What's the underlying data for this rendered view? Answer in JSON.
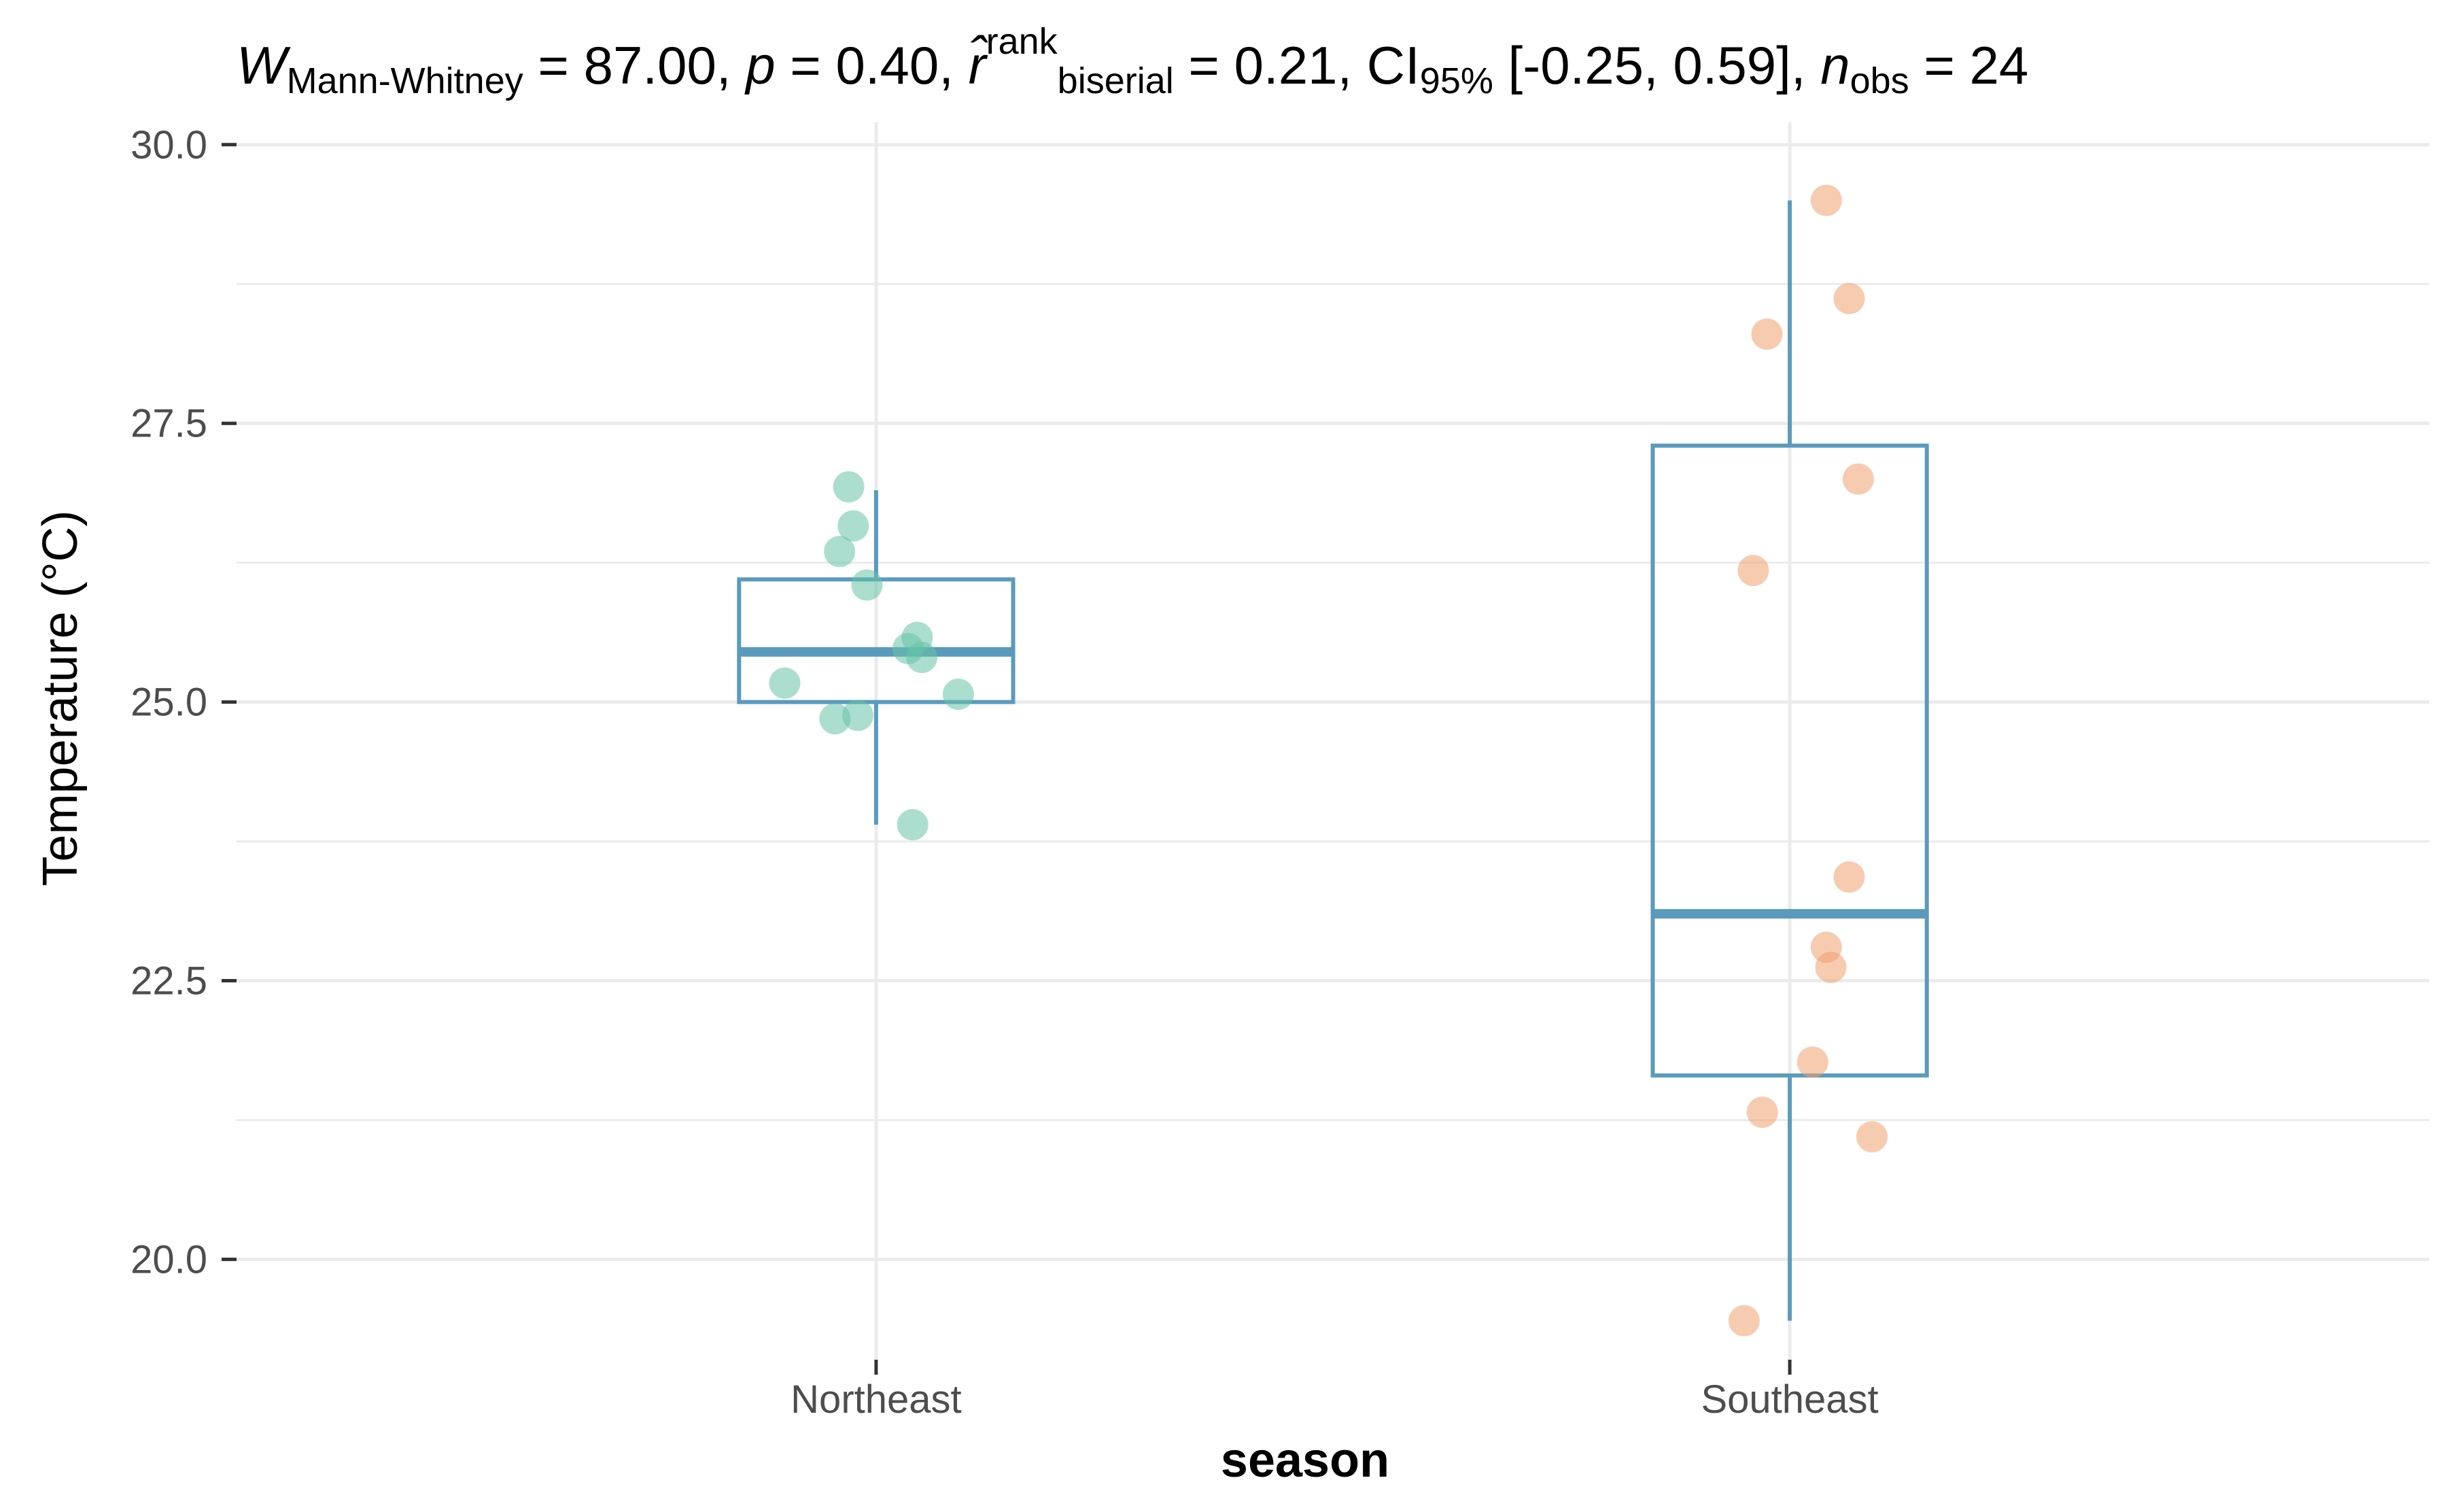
{
  "chart_data": {
    "type": "box",
    "subtitle_parts": {
      "stat_symbol": "W",
      "stat_subscript": "Mann-Whitney",
      "stat_value": " = 87.00, ",
      "p_symbol": "p",
      "p_value": " = 0.40, ",
      "effect_symbol": "r̂",
      "effect_superscript": "rank",
      "effect_subscript": "biserial",
      "effect_value": " = 0.21, CI",
      "ci_subscript": "95%",
      "ci_value": " [-0.25, 0.59], ",
      "n_symbol": "n",
      "n_subscript": "obs",
      "n_value": " = 24"
    },
    "xlabel": "season",
    "ylabel": "Temperature (°C)",
    "ylim": [
      19.1,
      30.2
    ],
    "yticks": [
      20.0,
      22.5,
      25.0,
      27.5,
      30.0
    ],
    "ytick_labels": [
      "20.0",
      "22.5",
      "25.0",
      "27.5",
      "30.0"
    ],
    "categories": [
      "Northeast",
      "Southeast"
    ],
    "grid": true,
    "colors": {
      "box": "#5a9bbd",
      "points": [
        "#66c2a5",
        "#f0a070"
      ],
      "grid": "#ebebeb",
      "tick_label": "#4d4d4d"
    },
    "boxes": [
      {
        "category": "Northeast",
        "min": 23.9,
        "q1": 25.0,
        "median": 25.45,
        "q3": 26.1,
        "max": 26.9
      },
      {
        "category": "Southeast",
        "min": 19.45,
        "q1": 21.65,
        "median": 23.1,
        "q3": 27.3,
        "max": 29.5
      }
    ],
    "series": [
      {
        "category": "Northeast",
        "points": [
          {
            "jitter": -0.03,
            "y": 26.93
          },
          {
            "jitter": -0.025,
            "y": 26.58
          },
          {
            "jitter": -0.04,
            "y": 26.35
          },
          {
            "jitter": -0.01,
            "y": 26.05
          },
          {
            "jitter": 0.045,
            "y": 25.58
          },
          {
            "jitter": 0.035,
            "y": 25.48
          },
          {
            "jitter": 0.05,
            "y": 25.4
          },
          {
            "jitter": -0.1,
            "y": 25.17
          },
          {
            "jitter": 0.09,
            "y": 25.07
          },
          {
            "jitter": -0.02,
            "y": 24.88
          },
          {
            "jitter": -0.045,
            "y": 24.85
          },
          {
            "jitter": 0.04,
            "y": 23.9
          }
        ]
      },
      {
        "category": "Southeast",
        "points": [
          {
            "jitter": 0.04,
            "y": 29.5
          },
          {
            "jitter": 0.065,
            "y": 28.62
          },
          {
            "jitter": -0.025,
            "y": 28.3
          },
          {
            "jitter": 0.075,
            "y": 27.0
          },
          {
            "jitter": -0.04,
            "y": 26.18
          },
          {
            "jitter": 0.065,
            "y": 23.43
          },
          {
            "jitter": 0.04,
            "y": 22.8
          },
          {
            "jitter": 0.045,
            "y": 22.62
          },
          {
            "jitter": 0.025,
            "y": 21.77
          },
          {
            "jitter": -0.03,
            "y": 21.32
          },
          {
            "jitter": 0.09,
            "y": 21.1
          },
          {
            "jitter": -0.05,
            "y": 19.45
          }
        ]
      }
    ]
  }
}
